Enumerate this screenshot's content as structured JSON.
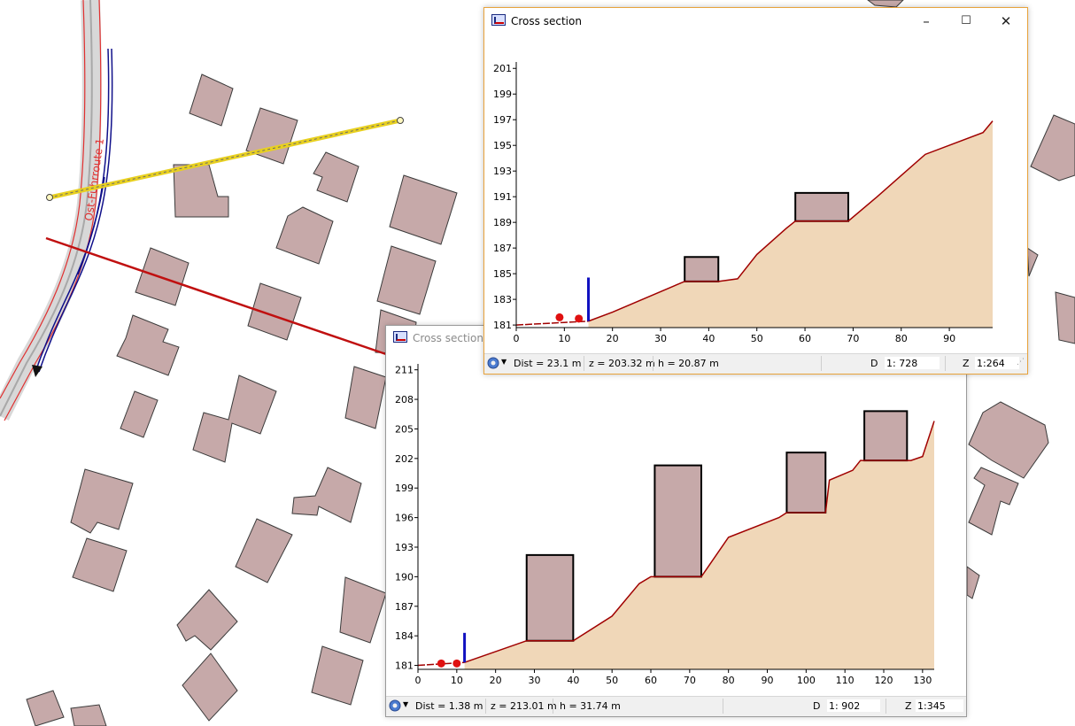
{
  "colors": {
    "building_fill": "#c6a9a9",
    "building_stroke": "#3a3a3a",
    "terrain_fill": "#f0d7b8",
    "terrain_line": "#a00000",
    "pole": "#1010c0",
    "marker": "#e01010",
    "road_gray": "#d4d4d4",
    "road_red": "#e03030",
    "route_blue": "#10108a",
    "section_yellow": "#e8d020",
    "section_red": "#c01010",
    "window_accent": "#e8a33c"
  },
  "map": {
    "road_label": "Ost-Fuhrroute 1",
    "icons": [
      "direction-arrow-icon"
    ]
  },
  "window1": {
    "title": "Cross section",
    "controls": {
      "minimize": "–",
      "maximize": "☐",
      "close": "✕"
    },
    "status": {
      "dist": "Dist = 23.1 m",
      "z": "z = 203.32 m",
      "h": "h = 20.87 m",
      "d_label": "D",
      "d_scale": "1: 728",
      "z_label": "Z",
      "z_scale": "1:264"
    }
  },
  "window2": {
    "title": "Cross section",
    "status": {
      "dist": "Dist = 1.38 m",
      "z": "z = 213.01 m",
      "h": "h = 31.74 m",
      "d_label": "D",
      "d_scale": "1: 902",
      "z_label": "Z",
      "z_scale": "1:345"
    }
  },
  "chart_data": [
    {
      "type": "area",
      "xlabel": "",
      "ylabel": "",
      "x_ticks": [
        0,
        10,
        20,
        30,
        40,
        50,
        60,
        70,
        80,
        90
      ],
      "y_ticks": [
        181,
        183,
        185,
        187,
        189,
        191,
        193,
        195,
        197,
        199,
        201
      ],
      "xlim": [
        0,
        99
      ],
      "ylim": [
        180.8,
        201.5
      ],
      "grid": false,
      "profile": [
        [
          15,
          181.3
        ],
        [
          20,
          182
        ],
        [
          35,
          184.4
        ],
        [
          42,
          184.4
        ],
        [
          46,
          184.6
        ],
        [
          50,
          186.5
        ],
        [
          56,
          188.5
        ],
        [
          58,
          189.1
        ],
        [
          69,
          189.1
        ],
        [
          75,
          191
        ],
        [
          85,
          194.3
        ],
        [
          97,
          196
        ],
        [
          99,
          196.9
        ]
      ],
      "ground_before": [
        [
          0,
          181
        ],
        [
          15,
          181.3
        ]
      ],
      "buildings": [
        {
          "x0": 35,
          "x1": 42,
          "top": 186.3
        },
        {
          "x0": 58,
          "x1": 69,
          "top": 191.3
        }
      ],
      "pole": {
        "x": 15,
        "top": 184.7
      },
      "markers": [
        [
          9,
          181.6
        ],
        [
          13,
          181.5
        ]
      ]
    },
    {
      "type": "area",
      "xlabel": "",
      "ylabel": "",
      "x_ticks": [
        0,
        10,
        20,
        30,
        40,
        50,
        60,
        70,
        80,
        90,
        100,
        110,
        120,
        130
      ],
      "y_ticks": [
        181,
        184,
        187,
        190,
        193,
        196,
        199,
        202,
        205,
        208,
        211
      ],
      "xlim": [
        0,
        133
      ],
      "ylim": [
        180.6,
        211.6
      ],
      "grid": false,
      "profile": [
        [
          12,
          181.3
        ],
        [
          28,
          183.5
        ],
        [
          40,
          183.5
        ],
        [
          50,
          186
        ],
        [
          57,
          189.3
        ],
        [
          60,
          190
        ],
        [
          73,
          190
        ],
        [
          80,
          194
        ],
        [
          93,
          196
        ],
        [
          95,
          196.5
        ],
        [
          105,
          196.5
        ],
        [
          106,
          199.8
        ],
        [
          112,
          200.8
        ],
        [
          114,
          201.8
        ],
        [
          127,
          201.8
        ],
        [
          130,
          202.2
        ],
        [
          133,
          205.8
        ]
      ],
      "ground_before": [
        [
          0,
          181
        ],
        [
          12,
          181.3
        ]
      ],
      "buildings": [
        {
          "x0": 28,
          "x1": 40,
          "top": 192.2
        },
        {
          "x0": 61,
          "x1": 73,
          "top": 201.3
        },
        {
          "x0": 95,
          "x1": 105,
          "top": 202.6
        },
        {
          "x0": 115,
          "x1": 126,
          "top": 206.8
        }
      ],
      "pole": {
        "x": 12,
        "top": 184.3
      },
      "markers": [
        [
          6,
          181.2
        ],
        [
          10,
          181.2
        ]
      ]
    }
  ]
}
